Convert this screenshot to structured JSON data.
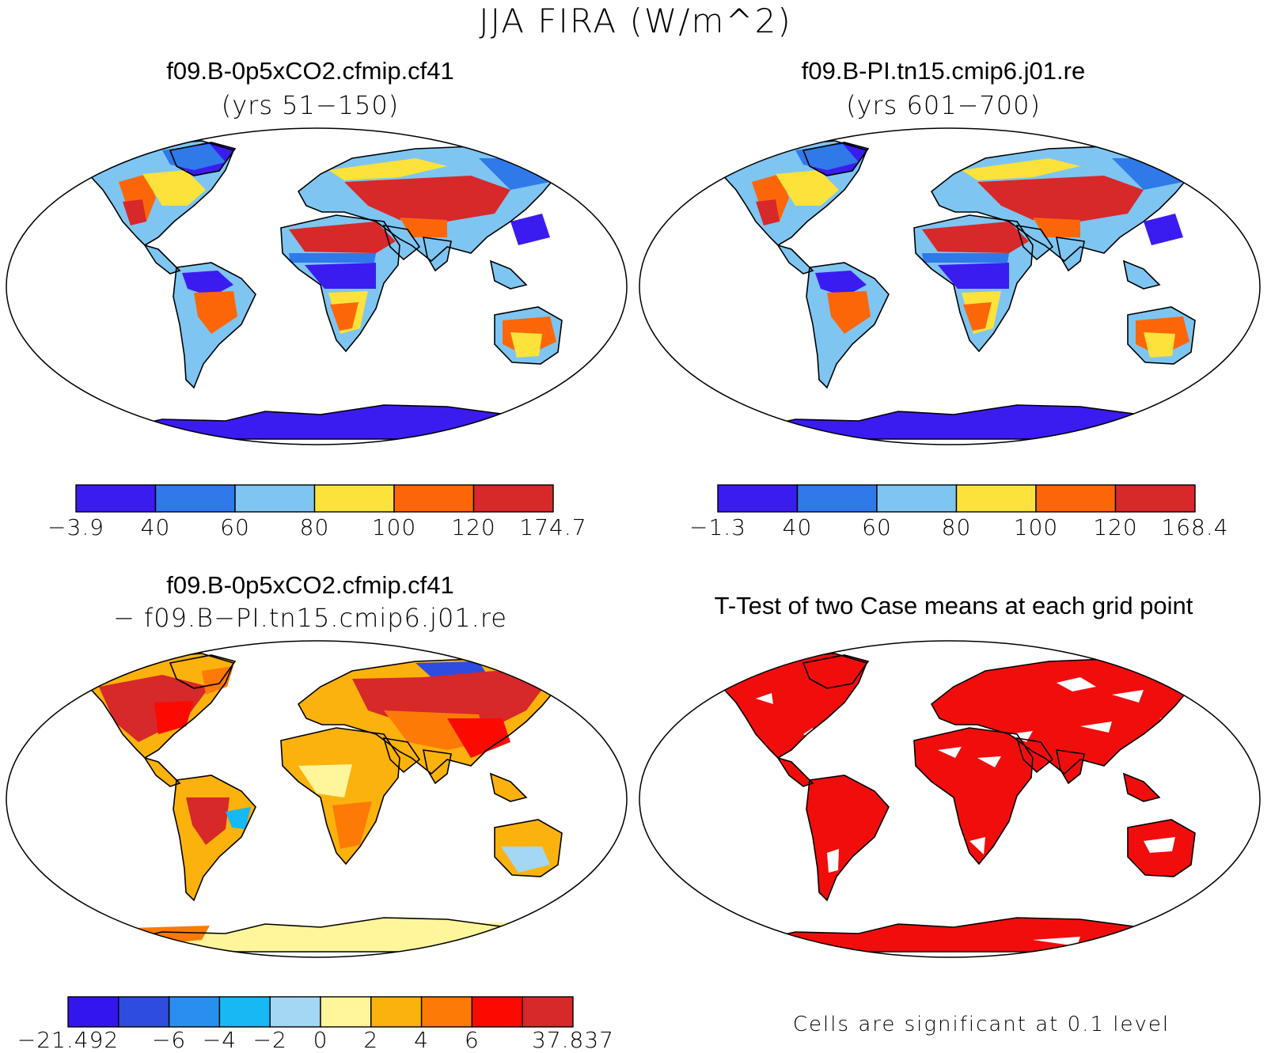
{
  "title": "JJA FIRA (W/m^2)",
  "panels": [
    {
      "id": "case1",
      "title": "f09.B-0p5xCO2.cfmip.cf41",
      "subtitle": "(yrs 51−150)",
      "colorbar": {
        "labels": [
          "−3.9",
          "40",
          "60",
          "80",
          "100",
          "120",
          "174.7"
        ],
        "colors": [
          "#3a1cf0",
          "#2f79e8",
          "#7ec5f2",
          "#fce23a",
          "#fd6608",
          "#d7282a"
        ]
      }
    },
    {
      "id": "case2",
      "title": "f09.B-PI.tn15.cmip6.j01.re",
      "subtitle": "(yrs 601−700)",
      "colorbar": {
        "labels": [
          "−1.3",
          "40",
          "60",
          "80",
          "100",
          "120",
          "168.4"
        ],
        "colors": [
          "#3a1cf0",
          "#2f79e8",
          "#7ec5f2",
          "#fce23a",
          "#fd6608",
          "#d7282a"
        ]
      }
    },
    {
      "id": "diff",
      "title": "f09.B-0p5xCO2.cfmip.cf41",
      "subtitle": "− f09.B−PI.tn15.cmip6.j01.re",
      "colorbar": {
        "labels": [
          "−21.492",
          "−6",
          "−4",
          "−2",
          "0",
          "2",
          "4",
          "6",
          "37.837"
        ],
        "label_slots": [
          0,
          2,
          3,
          4,
          5,
          6,
          7,
          8,
          10
        ],
        "colors": [
          "#3316ee",
          "#2f4ce0",
          "#2a8df0",
          "#17b8f3",
          "#a4d7f3",
          "#fff59a",
          "#fbb20c",
          "#fd7a06",
          "#fb0a02",
          "#d7282a"
        ]
      }
    },
    {
      "id": "ttest",
      "title": "T-Test of two Case means at each grid point",
      "note": "Cells are significant at 0.1 level",
      "color": "#f20d0d"
    }
  ]
}
